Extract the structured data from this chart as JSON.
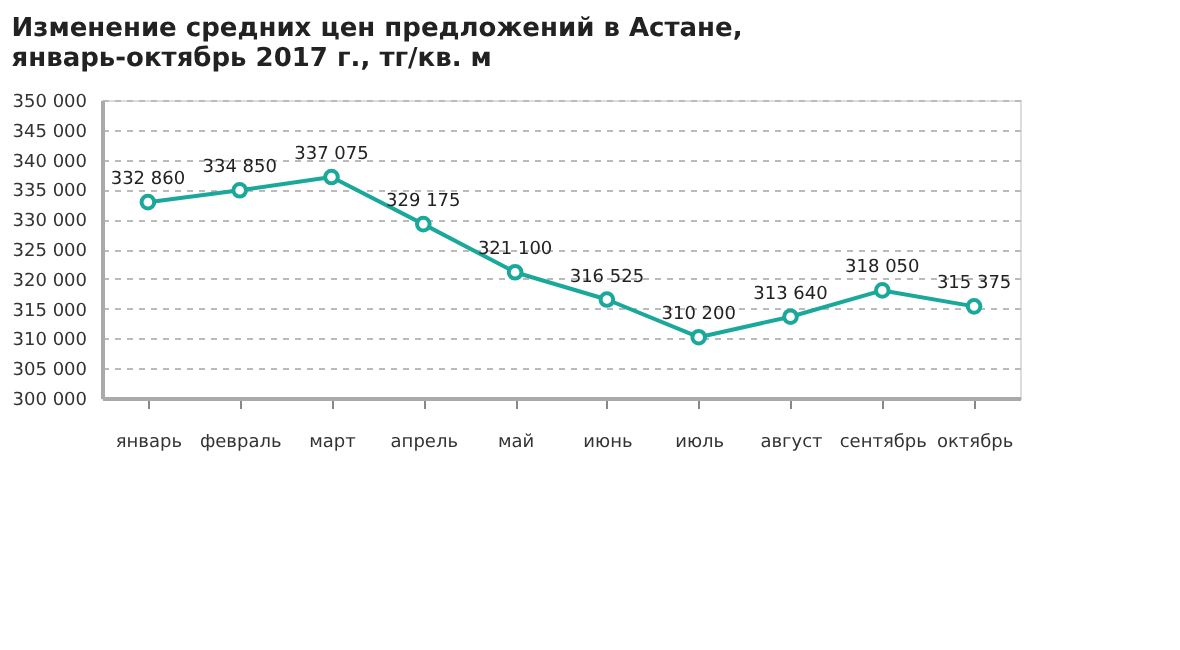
{
  "chart_data": {
    "type": "line",
    "title": "Изменение средних цен предложений в Астане,\nянварь-октябрь 2017 г., тг/кв. м",
    "categories": [
      "январь",
      "февраль",
      "март",
      "апрель",
      "май",
      "июнь",
      "июль",
      "август",
      "сентябрь",
      "октябрь"
    ],
    "series": [
      {
        "color": "#1aa89a",
        "values": [
          332860,
          334850,
          337075,
          329175,
          321100,
          316525,
          310200,
          313640,
          318050,
          315375
        ],
        "value_labels": [
          "332 860",
          "334 850",
          "337 075",
          "329 175",
          "321 100",
          "316 525",
          "310 200",
          "313 640",
          "318 050",
          "315 375"
        ]
      }
    ],
    "ylim": [
      300000,
      350000
    ],
    "yticks": [
      {
        "value": 300000,
        "label": "300 000"
      },
      {
        "value": 305000,
        "label": "305 000"
      },
      {
        "value": 310000,
        "label": "310 000"
      },
      {
        "value": 315000,
        "label": "315 000"
      },
      {
        "value": 320000,
        "label": "320 000"
      },
      {
        "value": 325000,
        "label": "325 000"
      },
      {
        "value": 330000,
        "label": "330 000"
      },
      {
        "value": 335000,
        "label": "335 000"
      },
      {
        "value": 340000,
        "label": "340 000"
      },
      {
        "value": 345000,
        "label": "345 000"
      },
      {
        "value": 350000,
        "label": "350 000"
      }
    ],
    "grid": "y",
    "marker": "circle",
    "line_style": "solid"
  }
}
